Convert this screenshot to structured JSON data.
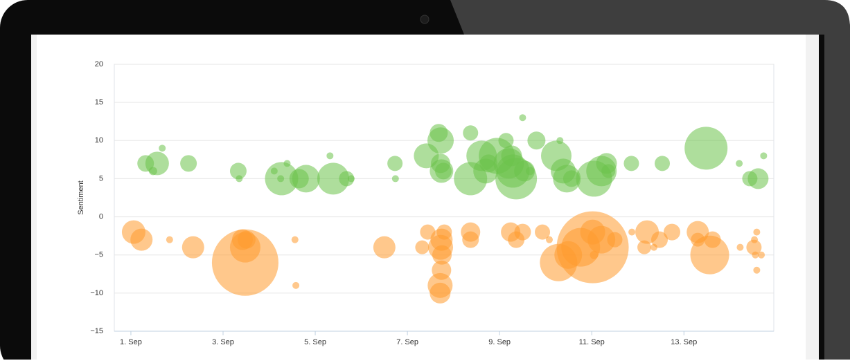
{
  "chart_data": {
    "type": "bubble",
    "y_label": "Sentiment",
    "xlim": [
      0.64,
      14.95
    ],
    "xticks": [
      {
        "value": 1,
        "label": "1. Sep"
      },
      {
        "value": 3,
        "label": "3. Sep"
      },
      {
        "value": 5,
        "label": "5. Sep"
      },
      {
        "value": 7,
        "label": "7. Sep"
      },
      {
        "value": 9,
        "label": "9. Sep"
      },
      {
        "value": 11,
        "label": "11. Sep"
      },
      {
        "value": 13,
        "label": "13. Sep"
      }
    ],
    "ylim": [
      -15,
      20
    ],
    "yticks": [
      {
        "value": -15,
        "label": "−15"
      },
      {
        "value": -10,
        "label": "−10"
      },
      {
        "value": -5,
        "label": "−5"
      },
      0,
      5,
      10,
      15,
      20
    ],
    "grid": true,
    "series": [
      {
        "color": "#6cc24a",
        "x": [
          1.32,
          1.57,
          1.48,
          1.68,
          2.25,
          3.33,
          3.35,
          4.11,
          4.27,
          4.39,
          4.25,
          4.65,
          4.8,
          5.32,
          5.39,
          5.68,
          5.78,
          6.73,
          6.74,
          7.41,
          7.68,
          7.72,
          7.74,
          7.72,
          7.78,
          8.37,
          8.37,
          8.61,
          8.7,
          8.76,
          8.94,
          9.14,
          9.2,
          9.29,
          9.36,
          9.26,
          9.5,
          9.54,
          9.66,
          9.8,
          10.23,
          10.31,
          10.38,
          10.46,
          10.56,
          11.05,
          11.21,
          11.32,
          11.36,
          11.86,
          12.53,
          13.48,
          14.2,
          14.43,
          14.61,
          14.73
        ],
        "y": [
          7,
          7,
          6,
          9,
          7,
          6,
          5,
          6,
          5,
          7,
          5,
          5,
          5,
          8,
          5,
          5,
          5,
          7,
          5,
          8,
          11,
          10,
          6,
          7,
          6,
          11,
          5,
          8,
          6,
          7,
          8,
          10,
          7,
          6,
          5,
          8,
          13,
          6,
          6,
          10,
          8,
          10,
          6,
          5,
          5,
          5,
          6,
          7,
          6,
          7,
          7,
          9,
          7,
          5,
          5,
          8
        ],
        "z": [
          12,
          17,
          6,
          5,
          12,
          12,
          5,
          5,
          24,
          5,
          5,
          14,
          20,
          5,
          23,
          11,
          5,
          11,
          5,
          18,
          13,
          19,
          17,
          14,
          12,
          11,
          24,
          22,
          18,
          13,
          26,
          11,
          22,
          24,
          30,
          15,
          5,
          15,
          6,
          13,
          22,
          5,
          18,
          20,
          12,
          26,
          22,
          15,
          10,
          11,
          11,
          31,
          5,
          11,
          15,
          5
        ]
      },
      {
        "color": "#ff9a2e",
        "x": [
          1.06,
          1.23,
          1.84,
          2.35,
          3.48,
          3.42,
          3.48,
          3.51,
          4.56,
          4.58,
          6.5,
          7.32,
          7.44,
          7.72,
          7.74,
          7.75,
          7.8,
          7.74,
          7.71,
          7.71,
          8.37,
          8.37,
          9.24,
          9.36,
          9.5,
          9.93,
          10.08,
          10.28,
          10.49,
          10.76,
          11.02,
          11.02,
          11.05,
          11.21,
          11.5,
          11.87,
          12.14,
          12.2,
          12.35,
          12.47,
          12.74,
          13.3,
          13.3,
          13.62,
          13.56,
          14.22,
          14.52,
          14.58,
          14.53,
          14.55,
          14.68,
          14.58
        ],
        "y": [
          -2,
          -3,
          -3,
          -4,
          -6,
          -3,
          -4,
          -3,
          -3,
          -9,
          -4,
          -4,
          -2,
          -4,
          -3,
          -5,
          -2,
          -7,
          -9,
          -10,
          -2,
          -3,
          -2,
          -3,
          -2,
          -2,
          -3,
          -6,
          -5,
          -4,
          -4,
          -2,
          -5,
          -3,
          -3,
          -2,
          -4,
          -2,
          -4,
          -3,
          -2,
          -2,
          -3,
          -3,
          -5,
          -4,
          -4,
          -2,
          -3,
          -5,
          -5,
          -7
        ],
        "z": [
          17,
          16,
          5,
          16,
          48,
          15,
          22,
          13,
          5,
          5,
          16,
          10,
          11,
          18,
          16,
          14,
          11,
          14,
          18,
          15,
          14,
          12,
          14,
          12,
          12,
          11,
          5,
          27,
          20,
          28,
          52,
          18,
          6,
          20,
          11,
          5,
          10,
          17,
          5,
          12,
          12,
          16,
          10,
          12,
          28,
          5,
          11,
          5,
          5,
          5,
          5,
          5
        ]
      }
    ]
  }
}
